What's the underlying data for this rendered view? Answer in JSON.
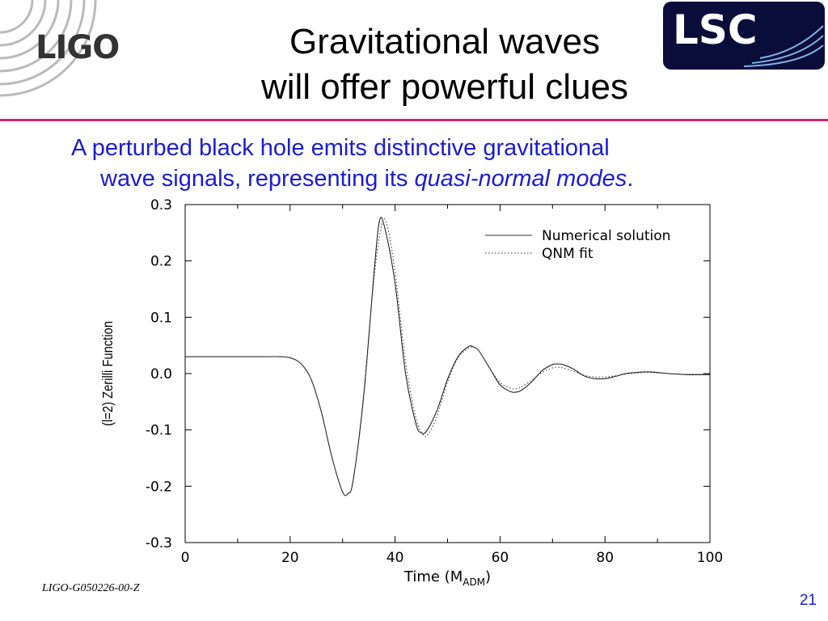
{
  "header": {
    "logo_text": "LIGO",
    "title_line1": "Gravitational waves",
    "title_line2": "will offer powerful clues",
    "partner_logo_text": "LSC"
  },
  "body": {
    "line1": "A perturbed black hole emits distinctive gravitational",
    "line2_prefix": "wave signals, representing its ",
    "line2_emphasis": "quasi-normal modes",
    "line2_suffix": "."
  },
  "footer": {
    "document_id": "LIGO-G050226-00-Z",
    "page_number": "21"
  },
  "colors": {
    "accent_rule": "#c8267a",
    "body_text": "#1c1cd4",
    "logo_box": "#0a0d3a"
  },
  "chart_data": {
    "type": "line",
    "xlabel": "Time (M",
    "xlabel_subscript": "ADM",
    "xlabel_suffix": ")",
    "ylabel": "(l=2) Zerilli Function",
    "xlim": [
      0,
      100
    ],
    "ylim": [
      -0.3,
      0.3
    ],
    "x_ticks": [
      0,
      20,
      40,
      60,
      80,
      100
    ],
    "x_tick_labels": [
      "0",
      "20",
      "40",
      "60",
      "80",
      "100"
    ],
    "y_ticks": [
      0.3,
      0.2,
      0.1,
      0.0,
      -0.1,
      -0.2,
      -0.3
    ],
    "y_tick_labels": [
      "0.3",
      "0.2",
      "0.1",
      "0.0",
      "-0.1",
      "-0.2",
      "-0.3"
    ],
    "grid": false,
    "legend_position": "top-right",
    "series": [
      {
        "name": "Numerical solution",
        "style": "solid",
        "x": [
          0,
          5,
          10,
          15,
          18,
          20,
          22,
          24,
          26,
          28,
          30,
          31,
          32,
          34,
          36,
          37,
          38,
          40,
          42,
          44,
          45,
          46,
          48,
          50,
          52,
          54,
          55,
          56,
          58,
          60,
          62,
          63,
          64,
          66,
          68,
          70,
          71,
          72,
          74,
          76,
          78,
          80,
          82,
          84,
          86,
          88,
          90,
          92,
          94,
          96,
          98,
          100
        ],
        "y": [
          0.03,
          0.03,
          0.03,
          0.03,
          0.03,
          0.028,
          0.018,
          -0.01,
          -0.07,
          -0.15,
          -0.21,
          -0.213,
          -0.19,
          -0.04,
          0.18,
          0.27,
          0.26,
          0.16,
          0.0,
          -0.09,
          -0.105,
          -0.102,
          -0.065,
          -0.01,
          0.03,
          0.048,
          0.047,
          0.04,
          0.01,
          -0.02,
          -0.032,
          -0.033,
          -0.03,
          -0.015,
          0.005,
          0.016,
          0.017,
          0.016,
          0.008,
          -0.004,
          -0.009,
          -0.009,
          -0.005,
          0.0,
          0.002,
          0.003,
          0.002,
          0.0,
          -0.001,
          -0.002,
          -0.002,
          -0.002
        ]
      },
      {
        "name": "QNM fit",
        "style": "dotted",
        "x": [
          0,
          5,
          10,
          15,
          18,
          20,
          22,
          24,
          26,
          28,
          30,
          31,
          32,
          34,
          36,
          37.5,
          38.5,
          40,
          42,
          44,
          45.5,
          46.5,
          48,
          50,
          52,
          54,
          55,
          56,
          58,
          60,
          62,
          63,
          64,
          66,
          68,
          70,
          71,
          72,
          74,
          76,
          78,
          80,
          82,
          84,
          86,
          88,
          90,
          92,
          94,
          96,
          98,
          100
        ],
        "y": [
          0.03,
          0.03,
          0.03,
          0.03,
          0.03,
          0.028,
          0.018,
          -0.01,
          -0.07,
          -0.15,
          -0.21,
          -0.213,
          -0.19,
          -0.045,
          0.17,
          0.265,
          0.262,
          0.18,
          0.02,
          -0.08,
          -0.11,
          -0.105,
          -0.075,
          -0.015,
          0.028,
          0.045,
          0.046,
          0.04,
          0.01,
          -0.016,
          -0.026,
          -0.027,
          -0.024,
          -0.012,
          0.002,
          0.01,
          0.011,
          0.01,
          0.004,
          -0.003,
          -0.006,
          -0.006,
          -0.004,
          -0.001,
          0.001,
          0.002,
          0.001,
          0.0,
          -0.001,
          -0.001,
          -0.001,
          -0.001
        ]
      }
    ]
  }
}
